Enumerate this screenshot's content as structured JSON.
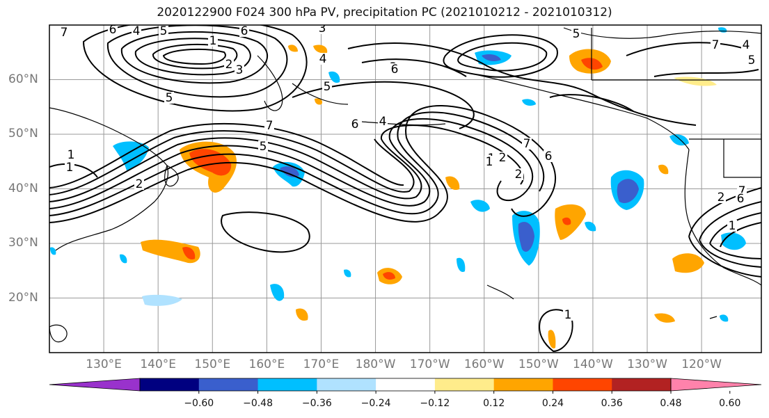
{
  "title": "2020122900 F024 300 hPa PV, precipitation PC (2021010212 - 2021010312)",
  "map": {
    "projection": "cylindrical",
    "lon_range_east": [
      120,
      251
    ],
    "lat_range": [
      10,
      70
    ],
    "lat_ticks": [
      "20°N",
      "30°N",
      "40°N",
      "50°N",
      "60°N"
    ],
    "lon_ticks": [
      "130°E",
      "140°E",
      "150°E",
      "160°E",
      "170°E",
      "180°W",
      "170°W",
      "160°W",
      "150°W",
      "140°W",
      "130°W",
      "120°W"
    ],
    "gridlines": true,
    "coastlines": true
  },
  "pv_contour_labels": [
    "7",
    "6",
    "4",
    "5",
    "1",
    "2",
    "3",
    "3",
    "4",
    "5",
    "7",
    "6",
    "5",
    "1",
    "2",
    "3",
    "6",
    "5",
    "4",
    "5",
    "7",
    "6",
    "4",
    "5",
    "1",
    "2",
    "7",
    "6",
    "2",
    "1",
    "7",
    "6",
    "1",
    "2",
    "1",
    "1"
  ],
  "colorbar": {
    "orientation": "horizontal",
    "extend": "both",
    "colors": [
      "#9932cc",
      "#000080",
      "#3a5fcd",
      "#00bfff",
      "#b0e2ff",
      "#ffffff",
      "#ffec8b",
      "#ffa500",
      "#ff4500",
      "#b22222",
      "#ff82ab"
    ],
    "tick_labels": [
      "−0.60",
      "−0.48",
      "−0.36",
      "−0.24",
      "−0.12",
      "0.12",
      "0.24",
      "0.36",
      "0.48",
      "0.60"
    ]
  }
}
